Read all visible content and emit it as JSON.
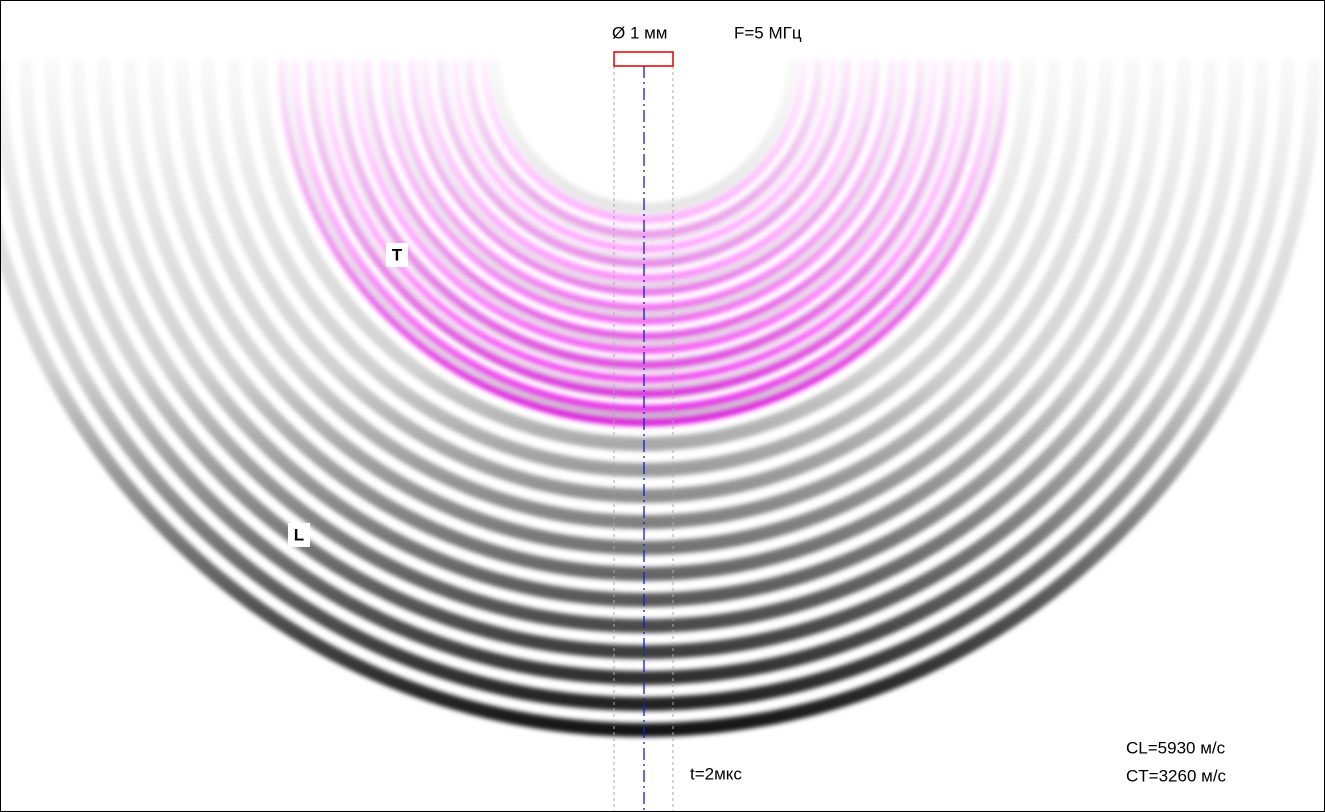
{
  "transducer": {
    "diameter": "Ø 1 мм",
    "frequency": "F=5 МГц"
  },
  "waves": {
    "transverse": "T",
    "longitudinal": "L"
  },
  "time": "t=2мкс",
  "velocities": {
    "longitudinal": "CL=5930 м/с",
    "transverse": "CT=3260 м/с"
  }
}
